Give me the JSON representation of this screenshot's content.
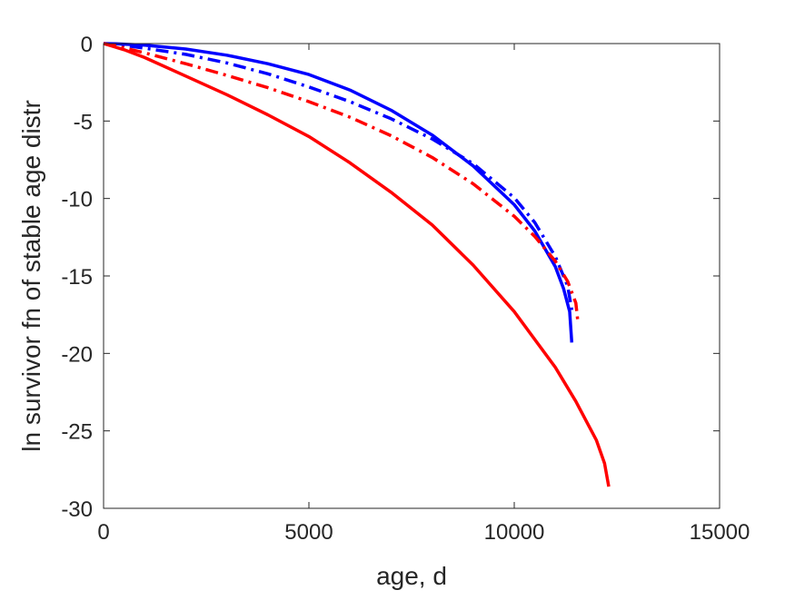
{
  "chart_data": {
    "type": "line",
    "title": "",
    "xlabel": "age, d",
    "ylabel": "ln survivor fn of stable age distr",
    "xlim": [
      0,
      15000
    ],
    "ylim": [
      -30,
      0
    ],
    "xticks": [
      0,
      5000,
      10000,
      15000
    ],
    "yticks": [
      0,
      -5,
      -10,
      -15,
      -20,
      -25,
      -30
    ],
    "xtick_labels": [
      "0",
      "5000",
      "10000",
      "15000"
    ],
    "ytick_labels": [
      "0",
      "-5",
      "-10",
      "-15",
      "-20",
      "-25",
      "-30"
    ],
    "grid": false,
    "legend": "none",
    "series": [
      {
        "color": "#ff0000",
        "style": "solid",
        "x": [
          0,
          500,
          1000,
          2000,
          3000,
          4000,
          5000,
          6000,
          7000,
          8000,
          9000,
          10000,
          11000,
          11500,
          12000,
          12200,
          12300
        ],
        "y": [
          0,
          -0.4,
          -0.9,
          -2.1,
          -3.3,
          -4.6,
          -6.0,
          -7.7,
          -9.6,
          -11.7,
          -14.3,
          -17.3,
          -20.9,
          -23.1,
          -25.6,
          -27.1,
          -28.6
        ]
      },
      {
        "color": "#0000ff",
        "style": "solid",
        "x": [
          0,
          300,
          1000,
          2000,
          3000,
          4000,
          5000,
          6000,
          7000,
          8000,
          9000,
          10000,
          10500,
          11000,
          11200,
          11350,
          11400
        ],
        "y": [
          0,
          -0.02,
          -0.1,
          -0.35,
          -0.75,
          -1.3,
          -2.0,
          -3.0,
          -4.3,
          -5.9,
          -7.9,
          -10.4,
          -12.1,
          -14.4,
          -15.8,
          -17.3,
          -19.3
        ]
      },
      {
        "color": "#0000ff",
        "style": "dashdot",
        "x": [
          0,
          300,
          1000,
          2000,
          3000,
          4000,
          5000,
          6000,
          7000,
          8000,
          9000,
          10000,
          10500,
          11000,
          11300,
          11400
        ],
        "y": [
          0,
          -0.05,
          -0.3,
          -0.7,
          -1.25,
          -1.95,
          -2.8,
          -3.75,
          -4.85,
          -6.15,
          -7.75,
          -9.95,
          -11.55,
          -13.75,
          -15.65,
          -17.2
        ]
      },
      {
        "color": "#ff0000",
        "style": "dashdot",
        "x": [
          0,
          300,
          1000,
          2000,
          3000,
          4000,
          5000,
          6000,
          7000,
          8000,
          9000,
          10000,
          10500,
          11000,
          11300,
          11500,
          11550
        ],
        "y": [
          0,
          -0.15,
          -0.6,
          -1.3,
          -2.05,
          -2.85,
          -3.75,
          -4.75,
          -5.95,
          -7.35,
          -9.05,
          -11.15,
          -12.45,
          -14.05,
          -15.35,
          -16.75,
          -18.0
        ]
      }
    ]
  }
}
